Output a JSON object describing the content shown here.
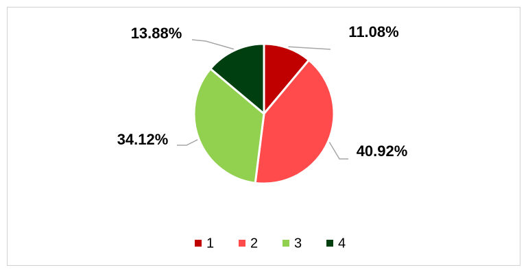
{
  "chart_data": {
    "type": "pie",
    "categories": [
      "1",
      "2",
      "3",
      "4"
    ],
    "values": [
      11.08,
      40.92,
      34.12,
      13.88
    ],
    "value_labels": [
      "11.08%",
      "40.92%",
      "34.12%",
      "13.88%"
    ],
    "colors": [
      "#c00000",
      "#ff4b4b",
      "#92d050",
      "#004010"
    ],
    "legend": "bottom"
  }
}
